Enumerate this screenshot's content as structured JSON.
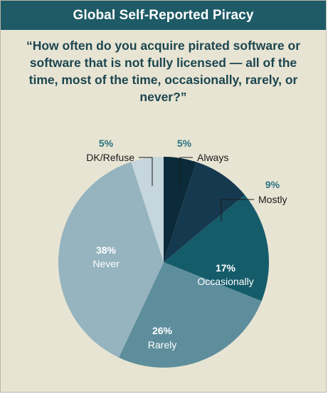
{
  "header": {
    "title": "Global Self-Reported Piracy"
  },
  "question": "“How often do you acquire pirated software or software that is not fully licensed — all of the time, most of the time, occasionally, rarely, or never?”",
  "chart_data": {
    "type": "pie",
    "title": "Global Self-Reported Piracy",
    "slices": [
      {
        "label": "Always",
        "pct_label": "5%",
        "value": 5,
        "color": "#0b2a3a"
      },
      {
        "label": "Mostly",
        "pct_label": "9%",
        "value": 9,
        "color": "#15394f"
      },
      {
        "label": "Occasionally",
        "pct_label": "17%",
        "value": 17,
        "color": "#155c6a"
      },
      {
        "label": "Rarely",
        "pct_label": "26%",
        "value": 26,
        "color": "#5e8e9c"
      },
      {
        "label": "Never",
        "pct_label": "38%",
        "value": 38,
        "color": "#95b4bf"
      },
      {
        "label": "DK/Refuse",
        "pct_label": "5%",
        "value": 5,
        "color": "#c5d6dc"
      }
    ],
    "colors": {
      "outside_pct": "#2a7380",
      "outside_name": "#1a1a1a",
      "inside_text": "#ffffff"
    }
  }
}
